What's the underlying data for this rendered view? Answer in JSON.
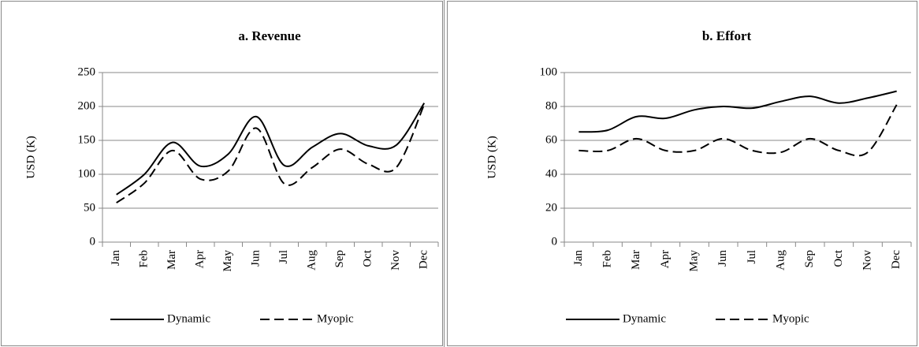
{
  "chart_data": [
    {
      "type": "line",
      "title": "a. Revenue",
      "y_label": "USD (K)",
      "categories": [
        "Jan",
        "Feb",
        "Mar",
        "Apr",
        "May",
        "Jun",
        "Jul",
        "Aug",
        "Sep",
        "Oct",
        "Nov",
        "Dec"
      ],
      "series": [
        {
          "name": "Dynamic",
          "color": "#000000",
          "style": "solid",
          "values": [
            70,
            100,
            147,
            112,
            130,
            185,
            113,
            140,
            160,
            142,
            143,
            205
          ]
        },
        {
          "name": "Myopic",
          "color": "#000000",
          "style": "dashed",
          "values": [
            58,
            87,
            135,
            93,
            105,
            168,
            86,
            110,
            137,
            115,
            110,
            203
          ]
        }
      ],
      "ylim": [
        0,
        250
      ],
      "yticks": [
        0,
        50,
        100,
        150,
        200,
        250
      ],
      "grid": true,
      "smooth": true,
      "legend": "bottom"
    },
    {
      "type": "line",
      "title": "b. Effort",
      "y_label": "USD (K)",
      "categories": [
        "Jan",
        "Feb",
        "Mar",
        "Apr",
        "May",
        "Jun",
        "Jul",
        "Aug",
        "Sep",
        "Oct",
        "Nov",
        "Dec"
      ],
      "series": [
        {
          "name": "Dynamic",
          "color": "#000000",
          "style": "solid",
          "values": [
            65,
            66,
            74,
            73,
            78,
            80,
            79,
            83,
            86,
            82,
            85,
            89
          ]
        },
        {
          "name": "Myopic",
          "color": "#000000",
          "style": "dashed",
          "values": [
            54,
            54,
            61,
            54,
            54,
            61,
            54,
            53,
            61,
            54,
            53,
            81
          ]
        }
      ],
      "ylim": [
        0,
        100
      ],
      "yticks": [
        0,
        20,
        40,
        60,
        80,
        100
      ],
      "grid": true,
      "smooth": true,
      "legend": "bottom"
    }
  ]
}
